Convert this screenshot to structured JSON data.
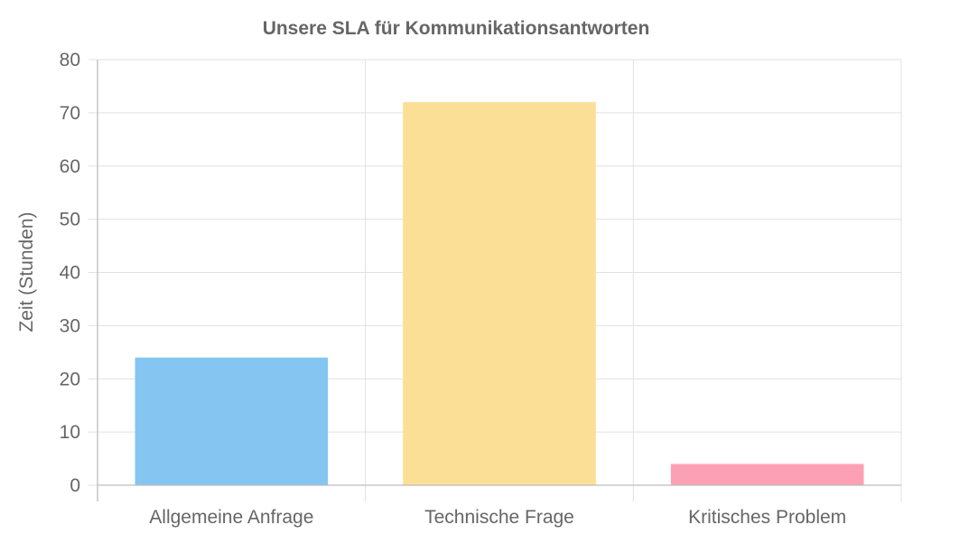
{
  "chart_data": {
    "type": "bar",
    "title": "Unsere SLA für Kommunikationsantworten",
    "xlabel": "",
    "ylabel": "Zeit (Stunden)",
    "categories": [
      "Allgemeine Anfrage",
      "Technische Frage",
      "Kritisches Problem"
    ],
    "values": [
      24,
      72,
      4
    ],
    "colors": [
      "#85c5f1",
      "#fcdf96",
      "#fca1b5"
    ],
    "ylim": [
      0,
      80
    ],
    "yticks": [
      "0",
      "10",
      "20",
      "30",
      "40",
      "50",
      "60",
      "70",
      "80"
    ],
    "grid": true,
    "legend": "none"
  }
}
